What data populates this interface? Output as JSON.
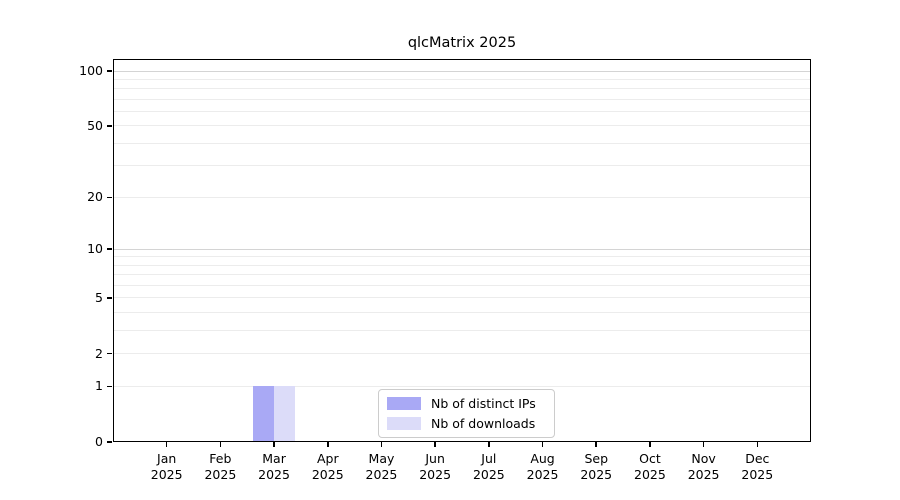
{
  "chart_data": {
    "type": "bar",
    "title": "qlcMatrix 2025",
    "xlabel": "",
    "ylabel": "",
    "categories": [
      {
        "month": "Jan",
        "year": "2025"
      },
      {
        "month": "Feb",
        "year": "2025"
      },
      {
        "month": "Mar",
        "year": "2025"
      },
      {
        "month": "Apr",
        "year": "2025"
      },
      {
        "month": "May",
        "year": "2025"
      },
      {
        "month": "Jun",
        "year": "2025"
      },
      {
        "month": "Jul",
        "year": "2025"
      },
      {
        "month": "Aug",
        "year": "2025"
      },
      {
        "month": "Sep",
        "year": "2025"
      },
      {
        "month": "Oct",
        "year": "2025"
      },
      {
        "month": "Nov",
        "year": "2025"
      },
      {
        "month": "Dec",
        "year": "2025"
      }
    ],
    "series": [
      {
        "name": "Nb of distinct IPs",
        "color": "#a9a9f5",
        "values": [
          0,
          0,
          1,
          0,
          0,
          0,
          0,
          0,
          0,
          0,
          0,
          0
        ]
      },
      {
        "name": "Nb of downloads",
        "color": "#dcdcf9",
        "values": [
          0,
          0,
          1,
          0,
          0,
          0,
          0,
          0,
          0,
          0,
          0,
          0
        ]
      }
    ],
    "y_axis": {
      "scale": "log1p",
      "tick_values": [
        0,
        1,
        2,
        5,
        10,
        20,
        50,
        100
      ],
      "minor_gridline_values": [
        1,
        2,
        3,
        4,
        5,
        6,
        7,
        8,
        9,
        20,
        30,
        40,
        50,
        60,
        70,
        80,
        90
      ],
      "major_gridline_values": [
        10,
        100
      ],
      "ylim": [
        0,
        115
      ]
    },
    "grid": "on",
    "legend_position": "bottom-center",
    "colors": {
      "major_gridline": "#d4d4d4",
      "minor_gridline": "#ececec",
      "axis_frame": "#000000"
    }
  }
}
